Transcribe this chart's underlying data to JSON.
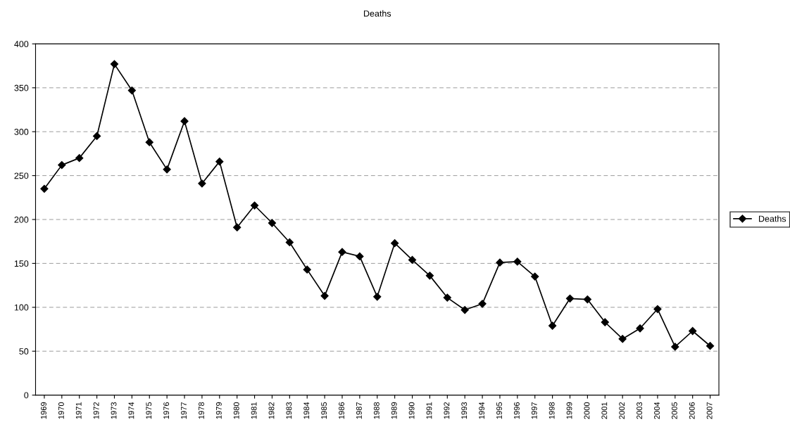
{
  "chart_data": {
    "type": "line",
    "title": "Deaths",
    "categories": [
      "1969",
      "1970",
      "1971",
      "1972",
      "1973",
      "1974",
      "1975",
      "1976",
      "1977",
      "1978",
      "1979",
      "1980",
      "1981",
      "1982",
      "1983",
      "1984",
      "1985",
      "1986",
      "1987",
      "1988",
      "1989",
      "1990",
      "1991",
      "1992",
      "1993",
      "1994",
      "1995",
      "1996",
      "1997",
      "1998",
      "1999",
      "2000",
      "2001",
      "2002",
      "2003",
      "2004",
      "2005",
      "2006",
      "2007"
    ],
    "series": [
      {
        "name": "Deaths",
        "color": "#000000",
        "values": [
          235,
          262,
          270,
          295,
          377,
          347,
          288,
          257,
          312,
          241,
          266,
          191,
          216,
          196,
          174,
          143,
          113,
          163,
          158,
          112,
          173,
          154,
          136,
          111,
          97,
          104,
          151,
          152,
          135,
          79,
          110,
          109,
          83,
          64,
          76,
          98,
          55,
          73,
          56
        ]
      }
    ],
    "ylim": [
      0,
      400
    ],
    "yticks": [
      0,
      50,
      100,
      150,
      200,
      250,
      300,
      350,
      400
    ],
    "grid": "y",
    "legend": "right",
    "marker": "diamond",
    "line_style": "solid"
  }
}
